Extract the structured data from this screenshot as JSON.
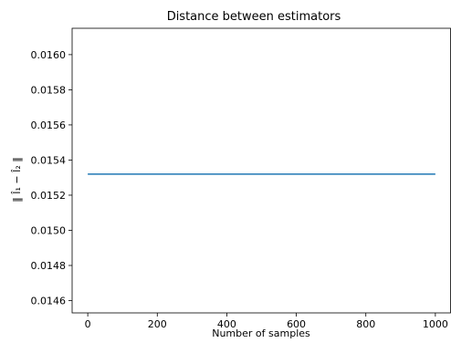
{
  "chart_data": {
    "type": "line",
    "title": "Distance between estimators",
    "xlabel": "Number of samples",
    "ylabel": "‖ Î₁ − Î₂ ‖",
    "xlim": [
      -45,
      1045
    ],
    "ylim": [
      0.01453,
      0.01615
    ],
    "xticks": [
      0,
      200,
      400,
      600,
      800,
      1000
    ],
    "yticks": [
      0.0146,
      0.0148,
      0.015,
      0.0152,
      0.0154,
      0.0156,
      0.0158,
      0.016
    ],
    "ytick_labels": [
      "0.0146",
      "0.0148",
      "0.0150",
      "0.0152",
      "0.0154",
      "0.0156",
      "0.0158",
      "0.0160"
    ],
    "grid": false,
    "series": [
      {
        "color": "#1f77b4",
        "x": [
          0,
          1000
        ],
        "y": [
          0.01532,
          0.01532
        ]
      }
    ]
  }
}
